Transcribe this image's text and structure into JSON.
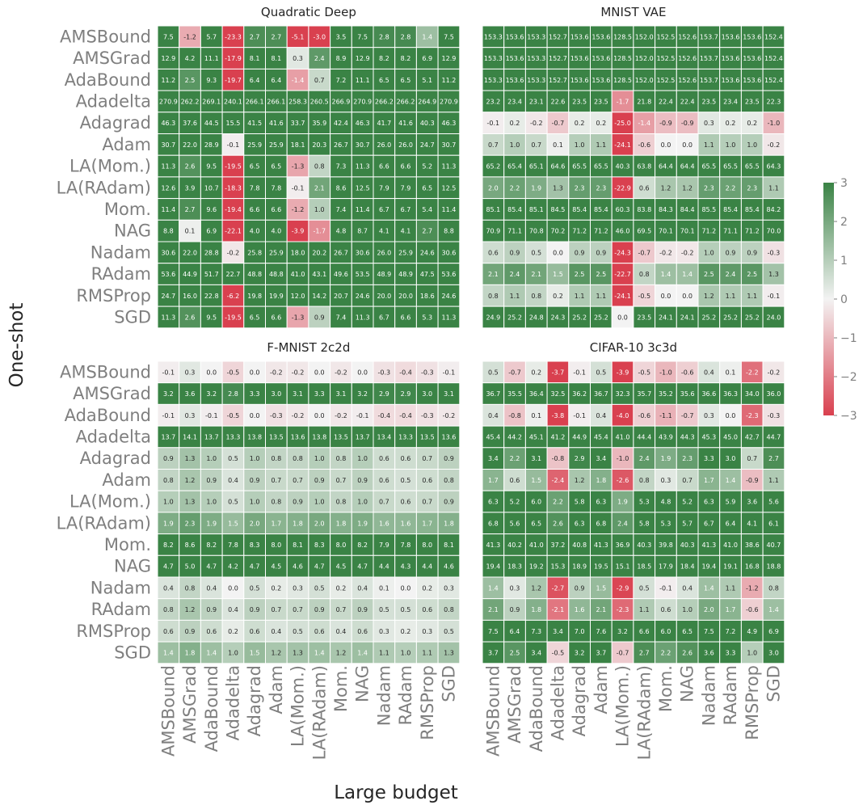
{
  "chart_data": {
    "type": "heatmap",
    "xlabel": "Large budget",
    "ylabel": "One-shot",
    "optimizers": [
      "AMSBound",
      "AMSGrad",
      "AdaBound",
      "Adadelta",
      "Adagrad",
      "Adam",
      "LA(Mom.)",
      "LA(RAdam)",
      "Mom.",
      "NAG",
      "Nadam",
      "RAdam",
      "RMSProp",
      "SGD"
    ],
    "colorbar": {
      "min": -3,
      "max": 3,
      "ticks": [
        "−3",
        "−2",
        "−1",
        "0",
        "1",
        "2",
        "3"
      ],
      "colors": {
        "negative": "#d9404f",
        "zero": "#f3f3f3",
        "positive": "#3a8345"
      }
    },
    "panels": [
      {
        "title": "Quadratic Deep",
        "values": [
          [
            7.5,
            -1.2,
            5.7,
            -23.3,
            2.7,
            2.7,
            -5.1,
            -3.0,
            3.5,
            7.5,
            2.8,
            2.8,
            1.4,
            7.5
          ],
          [
            12.9,
            4.2,
            11.1,
            -17.9,
            8.1,
            8.1,
            0.3,
            2.4,
            8.9,
            12.9,
            8.2,
            8.2,
            6.9,
            12.9
          ],
          [
            11.2,
            2.5,
            9.3,
            -19.7,
            6.4,
            6.4,
            -1.4,
            0.7,
            7.2,
            11.1,
            6.5,
            6.5,
            5.1,
            11.2
          ],
          [
            270.9,
            262.2,
            269.1,
            240.1,
            266.1,
            266.1,
            258.3,
            260.5,
            266.9,
            270.9,
            266.2,
            266.2,
            264.9,
            270.9
          ],
          [
            46.3,
            37.6,
            44.5,
            15.5,
            41.5,
            41.6,
            33.7,
            35.9,
            42.4,
            46.3,
            41.7,
            41.6,
            40.3,
            46.3
          ],
          [
            30.7,
            22.0,
            28.9,
            -0.1,
            25.9,
            25.9,
            18.1,
            20.3,
            26.7,
            30.7,
            26.0,
            26.0,
            24.7,
            30.7
          ],
          [
            11.3,
            2.6,
            9.5,
            -19.5,
            6.5,
            6.5,
            -1.3,
            0.8,
            7.3,
            11.3,
            6.6,
            6.6,
            5.2,
            11.3
          ],
          [
            12.6,
            3.9,
            10.7,
            -18.3,
            7.8,
            7.8,
            -0.1,
            2.1,
            8.6,
            12.5,
            7.9,
            7.9,
            6.5,
            12.5
          ],
          [
            11.4,
            2.7,
            9.6,
            -19.4,
            6.6,
            6.6,
            -1.2,
            1.0,
            7.4,
            11.4,
            6.7,
            6.7,
            5.4,
            11.4
          ],
          [
            8.8,
            0.1,
            6.9,
            -22.1,
            4.0,
            4.0,
            -3.9,
            -1.7,
            4.8,
            8.7,
            4.1,
            4.1,
            2.7,
            8.8
          ],
          [
            30.6,
            22.0,
            28.8,
            -0.2,
            25.8,
            25.9,
            18.0,
            20.2,
            26.7,
            30.6,
            26.0,
            25.9,
            24.6,
            30.6
          ],
          [
            53.6,
            44.9,
            51.7,
            22.7,
            48.8,
            48.8,
            41.0,
            43.1,
            49.6,
            53.5,
            48.9,
            48.9,
            47.5,
            53.6
          ],
          [
            24.7,
            16.0,
            22.8,
            -6.2,
            19.8,
            19.9,
            12.0,
            14.2,
            20.7,
            24.6,
            20.0,
            20.0,
            18.6,
            24.6
          ],
          [
            11.3,
            2.6,
            9.5,
            -19.5,
            6.5,
            6.6,
            -1.3,
            0.9,
            7.4,
            11.3,
            6.7,
            6.6,
            5.3,
            11.3
          ]
        ]
      },
      {
        "title": "MNIST VAE",
        "values": [
          [
            153.3,
            153.6,
            153.3,
            152.7,
            153.6,
            153.6,
            128.5,
            152.0,
            152.5,
            152.6,
            153.7,
            153.6,
            153.6,
            152.4
          ],
          [
            153.3,
            153.6,
            153.3,
            152.7,
            153.6,
            153.6,
            128.5,
            152.0,
            152.5,
            152.6,
            153.7,
            153.6,
            153.6,
            152.4
          ],
          [
            153.3,
            153.6,
            153.3,
            152.7,
            153.6,
            153.6,
            128.5,
            152.0,
            152.5,
            152.6,
            153.7,
            153.6,
            153.6,
            152.4
          ],
          [
            23.2,
            23.4,
            23.1,
            22.6,
            23.5,
            23.5,
            -1.7,
            21.8,
            22.4,
            22.4,
            23.5,
            23.4,
            23.5,
            22.3
          ],
          [
            -0.1,
            0.2,
            -0.2,
            -0.7,
            0.2,
            0.2,
            -25.0,
            -1.4,
            -0.9,
            -0.9,
            0.3,
            0.2,
            0.2,
            -1.0
          ],
          [
            0.7,
            1.0,
            0.7,
            0.1,
            1.0,
            1.1,
            -24.1,
            -0.6,
            -0.0,
            -0.0,
            1.1,
            1.0,
            1.0,
            -0.2
          ],
          [
            65.2,
            65.4,
            65.1,
            64.6,
            65.5,
            65.5,
            40.3,
            63.8,
            64.4,
            64.4,
            65.5,
            65.5,
            65.5,
            64.3
          ],
          [
            2.0,
            2.2,
            1.9,
            1.3,
            2.3,
            2.3,
            -22.9,
            0.6,
            1.2,
            1.2,
            2.3,
            2.2,
            2.3,
            1.1
          ],
          [
            85.1,
            85.4,
            85.1,
            84.5,
            85.4,
            85.4,
            60.3,
            83.8,
            84.3,
            84.4,
            85.5,
            85.4,
            85.4,
            84.2
          ],
          [
            70.9,
            71.1,
            70.8,
            70.2,
            71.2,
            71.2,
            46.0,
            69.5,
            70.1,
            70.1,
            71.2,
            71.1,
            71.2,
            70.0
          ],
          [
            0.6,
            0.9,
            0.5,
            -0.0,
            0.9,
            0.9,
            -24.3,
            -0.7,
            -0.2,
            -0.2,
            1.0,
            0.9,
            0.9,
            -0.3
          ],
          [
            2.1,
            2.4,
            2.1,
            1.5,
            2.5,
            2.5,
            -22.7,
            0.8,
            1.4,
            1.4,
            2.5,
            2.4,
            2.5,
            1.3
          ],
          [
            0.8,
            1.1,
            0.8,
            0.2,
            1.1,
            1.1,
            -24.1,
            -0.5,
            0.0,
            0.0,
            1.2,
            1.1,
            1.1,
            -0.1
          ],
          [
            24.9,
            25.2,
            24.8,
            24.3,
            25.2,
            25.2,
            -0.0,
            23.5,
            24.1,
            24.1,
            25.2,
            25.2,
            25.2,
            24.0
          ]
        ]
      },
      {
        "title": "F-MNIST 2c2d",
        "values": [
          [
            -0.1,
            0.3,
            -0.0,
            -0.5,
            0.0,
            -0.2,
            -0.2,
            -0.0,
            -0.2,
            -0.0,
            -0.3,
            -0.4,
            -0.3,
            -0.1
          ],
          [
            3.2,
            3.6,
            3.2,
            2.8,
            3.3,
            3.0,
            3.1,
            3.3,
            3.1,
            3.2,
            2.9,
            2.9,
            3.0,
            3.1
          ],
          [
            -0.1,
            0.3,
            -0.1,
            -0.5,
            -0.0,
            -0.3,
            -0.2,
            -0.0,
            -0.2,
            -0.1,
            -0.4,
            -0.4,
            -0.3,
            -0.2
          ],
          [
            13.7,
            14.1,
            13.7,
            13.3,
            13.8,
            13.5,
            13.6,
            13.8,
            13.5,
            13.7,
            13.4,
            13.3,
            13.5,
            13.6
          ],
          [
            0.9,
            1.3,
            1.0,
            0.5,
            1.0,
            0.8,
            0.8,
            1.0,
            0.8,
            1.0,
            0.6,
            0.6,
            0.7,
            0.9
          ],
          [
            0.8,
            1.2,
            0.9,
            0.4,
            0.9,
            0.7,
            0.7,
            0.9,
            0.7,
            0.9,
            0.6,
            0.5,
            0.6,
            0.8
          ],
          [
            1.0,
            1.3,
            1.0,
            0.5,
            1.0,
            0.8,
            0.9,
            1.0,
            0.8,
            1.0,
            0.7,
            0.6,
            0.7,
            0.9
          ],
          [
            1.9,
            2.3,
            1.9,
            1.5,
            2.0,
            1.7,
            1.8,
            2.0,
            1.8,
            1.9,
            1.6,
            1.6,
            1.7,
            1.8
          ],
          [
            8.2,
            8.6,
            8.2,
            7.8,
            8.3,
            8.0,
            8.1,
            8.3,
            8.0,
            8.2,
            7.9,
            7.8,
            8.0,
            8.1
          ],
          [
            4.7,
            5.0,
            4.7,
            4.2,
            4.7,
            4.5,
            4.6,
            4.7,
            4.5,
            4.7,
            4.4,
            4.3,
            4.4,
            4.6
          ],
          [
            0.4,
            0.8,
            0.4,
            -0.0,
            0.5,
            0.2,
            0.3,
            0.5,
            0.2,
            0.4,
            0.1,
            0.0,
            0.2,
            0.3
          ],
          [
            0.8,
            1.2,
            0.9,
            0.4,
            0.9,
            0.7,
            0.7,
            0.9,
            0.7,
            0.9,
            0.5,
            0.5,
            0.6,
            0.8
          ],
          [
            0.6,
            0.9,
            0.6,
            0.2,
            0.6,
            0.4,
            0.5,
            0.6,
            0.4,
            0.6,
            0.3,
            0.2,
            0.3,
            0.5
          ],
          [
            1.4,
            1.8,
            1.4,
            1.0,
            1.5,
            1.2,
            1.3,
            1.4,
            1.2,
            1.4,
            1.1,
            1.0,
            1.1,
            1.3
          ]
        ]
      },
      {
        "title": "CIFAR-10 3c3d",
        "values": [
          [
            0.5,
            -0.7,
            0.2,
            -3.7,
            -0.1,
            0.5,
            -3.9,
            -0.5,
            -1.0,
            -0.6,
            0.4,
            0.1,
            -2.2,
            -0.2
          ],
          [
            36.7,
            35.5,
            36.4,
            32.5,
            36.2,
            36.7,
            32.3,
            35.7,
            35.2,
            35.6,
            36.6,
            36.3,
            34.0,
            36.0
          ],
          [
            0.4,
            -0.8,
            0.1,
            -3.8,
            -0.1,
            0.4,
            -4.0,
            -0.6,
            -1.1,
            -0.7,
            0.3,
            0.0,
            -2.3,
            -0.3
          ],
          [
            45.4,
            44.2,
            45.1,
            41.2,
            44.9,
            45.4,
            41.0,
            44.4,
            43.9,
            44.3,
            45.3,
            45.0,
            42.7,
            44.7
          ],
          [
            3.4,
            2.2,
            3.1,
            -0.8,
            2.9,
            3.4,
            -1.0,
            2.4,
            1.9,
            2.3,
            3.3,
            3.0,
            0.7,
            2.7
          ],
          [
            1.7,
            0.6,
            1.5,
            -2.4,
            1.2,
            1.8,
            -2.6,
            0.8,
            0.3,
            0.7,
            1.7,
            1.4,
            -0.9,
            1.1
          ],
          [
            6.3,
            5.2,
            6.0,
            2.2,
            5.8,
            6.3,
            1.9,
            5.3,
            4.8,
            5.2,
            6.3,
            5.9,
            3.6,
            5.6
          ],
          [
            6.8,
            5.6,
            6.5,
            2.6,
            6.3,
            6.8,
            2.4,
            5.8,
            5.3,
            5.7,
            6.7,
            6.4,
            4.1,
            6.1
          ],
          [
            41.3,
            40.2,
            41.0,
            37.2,
            40.8,
            41.3,
            36.9,
            40.3,
            39.8,
            40.3,
            41.3,
            41.0,
            38.6,
            40.7
          ],
          [
            19.4,
            18.3,
            19.2,
            15.3,
            18.9,
            19.5,
            15.1,
            18.5,
            17.9,
            18.4,
            19.4,
            19.1,
            16.8,
            18.8
          ],
          [
            1.4,
            0.3,
            1.2,
            -2.7,
            0.9,
            1.5,
            -2.9,
            0.5,
            -0.1,
            0.4,
            1.4,
            1.1,
            -1.2,
            0.8
          ],
          [
            2.1,
            0.9,
            1.8,
            -2.1,
            1.6,
            2.1,
            -2.3,
            1.1,
            0.6,
            1.0,
            2.0,
            1.7,
            -0.6,
            1.4
          ],
          [
            7.5,
            6.4,
            7.3,
            3.4,
            7.0,
            7.6,
            3.2,
            6.6,
            6.0,
            6.5,
            7.5,
            7.2,
            4.9,
            6.9
          ],
          [
            3.7,
            2.5,
            3.4,
            -0.5,
            3.2,
            3.7,
            -0.7,
            2.7,
            2.2,
            2.6,
            3.6,
            3.3,
            1.0,
            3.0
          ]
        ]
      }
    ]
  }
}
